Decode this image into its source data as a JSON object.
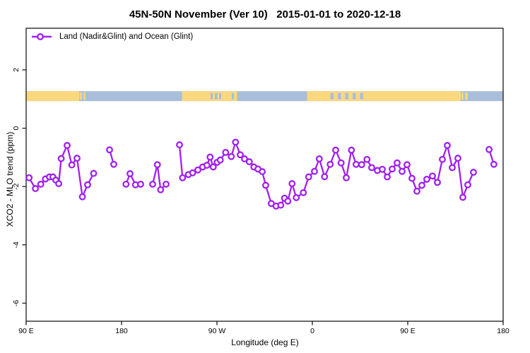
{
  "chart_data": {
    "type": "line",
    "title": "45N-50N November (Ver 10)   2015-01-01 to 2020-12-18",
    "xlabel": "Longitude (deg E)",
    "ylabel": "XCO2 - MLO trend (ppm)",
    "grid": false,
    "x_axis": {
      "range_deg": [
        90,
        540
      ],
      "note": "axis spans 450 deg of longitude wrapping eastward from 90E",
      "ticks": [
        {
          "deg": 90,
          "label": "90 E"
        },
        {
          "deg": 180,
          "label": "180"
        },
        {
          "deg": 270,
          "label": "90 W"
        },
        {
          "deg": 360,
          "label": "0"
        },
        {
          "deg": 450,
          "label": "90 E"
        },
        {
          "deg": 540,
          "label": "180"
        }
      ]
    },
    "y_axis": {
      "range": [
        -6.6,
        3.4
      ],
      "ticks": [
        {
          "value": 2,
          "label": "2"
        },
        {
          "value": 0,
          "label": "0"
        },
        {
          "value": -2,
          "label": "-2"
        },
        {
          "value": -4,
          "label": "-4"
        },
        {
          "value": -6,
          "label": "-6"
        }
      ]
    },
    "legend": {
      "position": "top-left",
      "entries": [
        {
          "label": "Land (Nadir&Glint) and Ocean (Glint)",
          "color": "#A020F0",
          "marker": "open-circle"
        }
      ]
    },
    "map_band": {
      "description": "45N-50N latitude world-map strip drawn at y ~ +1.1 ppm",
      "value_center": 1.1,
      "value_halfwidth": 0.17,
      "land_color": "#FBD87E",
      "ocean_color": "#A9BEDB",
      "land_segments_deg": [
        [
          90,
          140
        ],
        [
          237,
          289
        ],
        [
          355,
          500
        ]
      ],
      "land_speckles_deg": [
        [
          140.5,
          142.5
        ],
        [
          144,
          146
        ],
        [
          500.5,
          502.5
        ],
        [
          504,
          506.5
        ]
      ],
      "ocean_speckles_deg": [
        [
          264,
          266
        ],
        [
          268,
          270.5
        ],
        [
          272,
          274
        ],
        [
          284,
          286
        ],
        [
          377,
          380
        ],
        [
          384,
          387
        ],
        [
          391,
          394
        ],
        [
          398,
          401
        ],
        [
          405,
          408
        ]
      ]
    },
    "series": [
      {
        "name": "Land (Nadir&Glint) and Ocean (Glint)",
        "color": "#A020F0",
        "marker": "open-circle",
        "segments": [
          [
            [
              92.7,
              -1.7
            ],
            [
              98.7,
              -2.07
            ],
            [
              103.8,
              -1.92
            ],
            [
              108.2,
              -1.74
            ],
            [
              112.0,
              -1.67
            ],
            [
              115.3,
              -1.67
            ],
            [
              118.0,
              -1.78
            ],
            [
              120.7,
              -1.9
            ],
            [
              123.1,
              -1.04
            ],
            [
              128.7,
              -0.59
            ],
            [
              133.1,
              -1.26
            ],
            [
              138.0,
              -1.03
            ],
            [
              143.1,
              -2.35
            ],
            [
              148.0,
              -1.94
            ],
            [
              153.7,
              -1.55
            ]
          ],
          [
            [
              168.7,
              -0.74
            ],
            [
              172.7,
              -1.24
            ]
          ],
          [
            [
              184.2,
              -1.92
            ],
            [
              188.0,
              -1.56
            ],
            [
              193.1,
              -1.94
            ],
            [
              198.0,
              -1.92
            ]
          ],
          [
            [
              209.3,
              -1.92
            ],
            [
              213.8,
              -1.25
            ],
            [
              216.9,
              -2.11
            ],
            [
              222.0,
              -1.92
            ]
          ],
          [
            [
              234.7,
              -0.57
            ],
            [
              237.5,
              -1.7
            ],
            [
              243.1,
              -1.59
            ],
            [
              247.1,
              -1.53
            ],
            [
              252.0,
              -1.43
            ],
            [
              256.5,
              -1.33
            ],
            [
              260.5,
              -1.27
            ],
            [
              263.5,
              -0.99
            ],
            [
              266.5,
              -1.33
            ],
            [
              270.2,
              -1.17
            ],
            [
              273.1,
              -1.09
            ],
            [
              278.2,
              -0.83
            ],
            [
              283.5,
              -0.97
            ],
            [
              287.5,
              -0.48
            ],
            [
              292.0,
              -0.91
            ],
            [
              296.0,
              -1.05
            ],
            [
              300.5,
              -1.15
            ],
            [
              304.9,
              -1.33
            ],
            [
              308.7,
              -1.4
            ],
            [
              312.7,
              -1.49
            ],
            [
              316.0,
              -1.96
            ],
            [
              321.3,
              -2.58
            ],
            [
              325.8,
              -2.67
            ],
            [
              330.2,
              -2.64
            ],
            [
              333.8,
              -2.4
            ],
            [
              336.9,
              -2.5
            ],
            [
              340.9,
              -1.9
            ],
            [
              344.9,
              -2.38
            ],
            [
              351.5,
              -2.21
            ],
            [
              356.5,
              -1.67
            ],
            [
              362.0,
              -1.48
            ],
            [
              366.5,
              -1.05
            ],
            [
              371.5,
              -1.66
            ],
            [
              376.9,
              -1.24
            ],
            [
              382.0,
              -0.75
            ],
            [
              387.1,
              -1.19
            ],
            [
              392.0,
              -1.7
            ],
            [
              396.9,
              -0.75
            ],
            [
              401.3,
              -1.24
            ],
            [
              406.5,
              -1.25
            ],
            [
              411.5,
              -1.07
            ],
            [
              416.0,
              -1.35
            ],
            [
              421.3,
              -1.45
            ],
            [
              426.0,
              -1.41
            ],
            [
              430.7,
              -1.67
            ],
            [
              435.3,
              -1.4
            ],
            [
              440.0,
              -1.19
            ],
            [
              444.7,
              -1.48
            ],
            [
              449.3,
              -1.25
            ],
            [
              454.0,
              -1.72
            ],
            [
              458.7,
              -2.16
            ],
            [
              463.3,
              -1.96
            ],
            [
              468.0,
              -1.75
            ],
            [
              473.3,
              -1.64
            ],
            [
              478.0,
              -1.86
            ],
            [
              482.7,
              -1.07
            ],
            [
              487.3,
              -0.59
            ],
            [
              492.0,
              -1.35
            ],
            [
              497.3,
              -1.03
            ],
            [
              502.0,
              -2.37
            ],
            [
              506.7,
              -1.94
            ],
            [
              512.0,
              -1.51
            ]
          ],
          [
            [
              526.7,
              -0.73
            ],
            [
              531.3,
              -1.24
            ]
          ]
        ]
      }
    ]
  },
  "colors": {
    "accent": "#A020F0",
    "land": "#FBD87E",
    "ocean": "#A9BEDB",
    "axis": "#1a1a1a"
  }
}
